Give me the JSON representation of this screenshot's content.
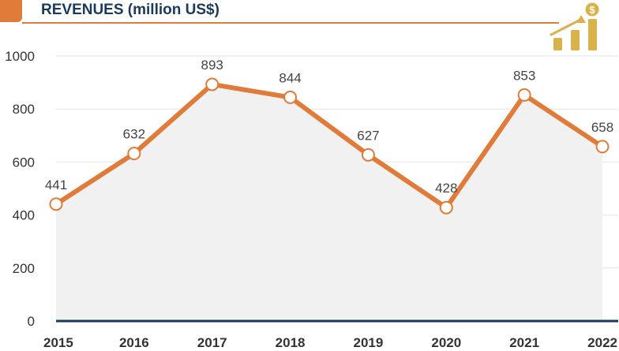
{
  "colors": {
    "accent": "#e07b39",
    "title": "#1a3a5c",
    "axis": "#1a3a5c",
    "area": "#f1f1f1",
    "grid": "#e6e6e6",
    "icon_gold": "#d9b24c"
  },
  "icon": "revenue-growth-icon",
  "chart_data": {
    "type": "line",
    "title": "REVENUES (million US$)",
    "xlabel": "",
    "ylabel": "",
    "categories": [
      "2015",
      "2016",
      "2017",
      "2018",
      "2019",
      "2020",
      "2021",
      "2022"
    ],
    "series": [
      {
        "name": "Revenues",
        "values": [
          441,
          632,
          893,
          844,
          627,
          428,
          853,
          658
        ]
      }
    ],
    "ylim": [
      0,
      1000
    ],
    "yticks": [
      0,
      200,
      400,
      600,
      800,
      1000
    ],
    "grid": true,
    "area_fill": true,
    "legend": "none"
  }
}
